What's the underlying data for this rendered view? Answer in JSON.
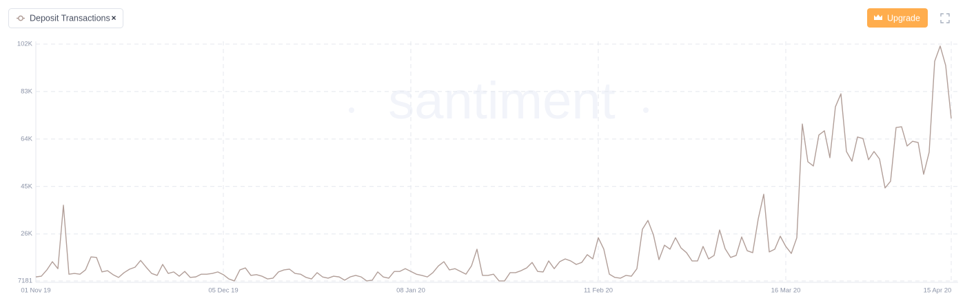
{
  "chart_data": {
    "type": "line",
    "ylim": [
      7181,
      102000
    ],
    "yticks": [
      7181,
      {
        "value": 26000,
        "label": "26K"
      },
      {
        "value": 45000,
        "label": "45K"
      },
      {
        "value": 64000,
        "label": "64K"
      },
      {
        "value": 83000,
        "label": "83K"
      },
      {
        "value": 102000,
        "label": "102K"
      }
    ],
    "grid": true,
    "categories": [
      "01 Nov 19",
      null,
      null,
      null,
      null,
      null,
      null,
      null,
      null,
      null,
      null,
      null,
      null,
      null,
      null,
      null,
      null,
      null,
      null,
      null,
      null,
      null,
      null,
      null,
      null,
      null,
      null,
      null,
      null,
      null,
      null,
      null,
      null,
      null,
      "05 Dec 19",
      null,
      null,
      null,
      null,
      null,
      null,
      null,
      null,
      null,
      null,
      null,
      null,
      null,
      null,
      null,
      null,
      null,
      null,
      null,
      null,
      null,
      null,
      null,
      null,
      null,
      null,
      null,
      null,
      null,
      null,
      null,
      null,
      null,
      "08 Jan 20",
      null,
      null,
      null,
      null,
      null,
      null,
      null,
      null,
      null,
      null,
      null,
      null,
      null,
      null,
      null,
      null,
      null,
      null,
      null,
      null,
      null,
      null,
      null,
      null,
      null,
      null,
      null,
      null,
      null,
      null,
      null,
      null,
      null,
      "11 Feb 20",
      null,
      null,
      null,
      null,
      null,
      null,
      null,
      null,
      null,
      null,
      null,
      null,
      null,
      null,
      null,
      null,
      null,
      null,
      null,
      null,
      null,
      null,
      null,
      null,
      null,
      null,
      null,
      null,
      null,
      null,
      null,
      null,
      null,
      "16 Mar 20",
      null,
      null,
      null,
      null,
      null,
      null,
      null,
      null,
      null,
      null,
      null,
      null,
      null,
      null,
      null,
      null,
      null,
      null,
      null,
      null,
      null,
      null,
      null,
      null,
      null,
      null,
      null,
      null,
      null,
      "15 Apr 20"
    ],
    "series": [
      {
        "name": "Deposit Transactions",
        "color": "#b19e98",
        "values": [
          8800,
          9100,
          11600,
          14900,
          12100,
          37500,
          9900,
          10200,
          9900,
          11600,
          16800,
          16600,
          10800,
          11300,
          9700,
          8600,
          10500,
          11900,
          12700,
          15400,
          12700,
          10200,
          9400,
          13800,
          10200,
          10800,
          9100,
          11000,
          8600,
          8800,
          9900,
          9900,
          10200,
          10800,
          9700,
          8000,
          7200,
          11600,
          12400,
          9400,
          9700,
          9100,
          8000,
          8300,
          10800,
          11600,
          11900,
          10200,
          9900,
          8600,
          8000,
          10500,
          8800,
          8300,
          9100,
          8800,
          7500,
          8800,
          9400,
          8800,
          7200,
          7500,
          10800,
          8800,
          8300,
          11000,
          11000,
          12100,
          11000,
          9900,
          9400,
          8800,
          10500,
          13200,
          14900,
          11600,
          12100,
          11000,
          9900,
          13200,
          19900,
          9400,
          9400,
          9900,
          7200,
          7200,
          10500,
          10500,
          11300,
          12400,
          14600,
          11000,
          10800,
          15200,
          12100,
          14900,
          16000,
          15200,
          13800,
          14600,
          17700,
          16000,
          24500,
          19900,
          9900,
          8600,
          8300,
          9400,
          9100,
          12100,
          27900,
          31400,
          25600,
          15700,
          21500,
          19900,
          24500,
          20400,
          18500,
          15200,
          15200,
          21000,
          16000,
          17400,
          27600,
          20100,
          16600,
          17400,
          24800,
          19300,
          18500,
          32000,
          41900,
          18800,
          19900,
          25100,
          21000,
          18200,
          24500,
          70000,
          54900,
          53200,
          65600,
          67300,
          56500,
          76900,
          82100,
          59000,
          55100,
          64800,
          64200,
          55700,
          59000,
          56000,
          44400,
          47100,
          68600,
          68900,
          61200,
          63100,
          62600,
          49900,
          58700,
          95100,
          101200,
          93400,
          72200
        ]
      }
    ]
  },
  "toolbar": {
    "upgrade": "Upgrade",
    "remove": "×"
  },
  "watermark": "santiment"
}
